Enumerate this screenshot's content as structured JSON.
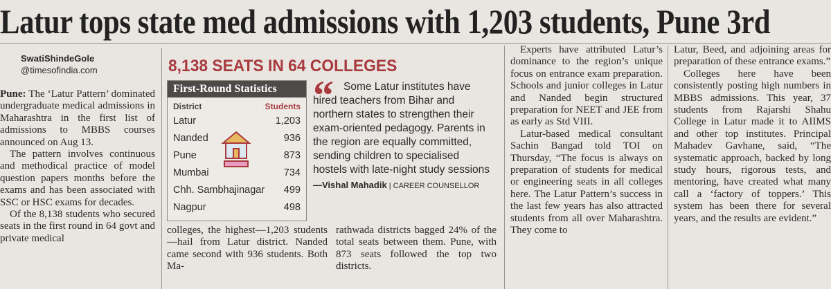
{
  "headline": "Latur tops state med admissions with 1,203 students, Pune 3rd",
  "byline": {
    "author": "SwatiShindeGole",
    "handle": "@timesofindia.com"
  },
  "infobox": {
    "banner": "8,138 SEATS IN 64 COLLEGES",
    "table": {
      "title": "First-Round Statistics",
      "headers": [
        "District",
        "Students"
      ],
      "rows": [
        [
          "Latur",
          "1,203"
        ],
        [
          "Nanded",
          "936"
        ],
        [
          "Pune",
          "873"
        ],
        [
          "Mumbai",
          "734"
        ],
        [
          "Chh. Sambhajinagar",
          "499"
        ],
        [
          "Nagpur",
          "498"
        ]
      ]
    },
    "quote": {
      "text": "Some Latur institutes have hired teachers from Bihar and northern states to strengthen their exam-oriented pedagogy. Parents in the region are equally committed, sending children to specialised hostels with late-night study sessions",
      "speaker": "—Vishal Mahadik",
      "role": "CAREER COUNSELLOR"
    }
  },
  "columns": [
    {
      "dateline": "Pune:",
      "paragraphs": [
        "The ‘Latur Pattern’ dominated undergraduate medical admissions in Maharashtra in the first list of admissions to MBBS courses announced on Aug 13.",
        "The pattern involves continuous and methodical practice of model question papers months before the exams and has been associated with SSC or HSC exams for decades.",
        "Of the 8,138 students who secured seats in the first round in 64 govt and private medical"
      ]
    },
    {
      "paragraphs": [
        "colleges, the highest—1,203 students—hail from Latur district. Nanded came second with 936 students. Both Ma-"
      ]
    },
    {
      "paragraphs": [
        "rathwada districts bagged 24% of the total seats between them. Pune, with 873 seats followed the top two districts."
      ]
    },
    {
      "paragraphs": [
        "Experts have attributed Latur’s dominance to the region’s unique focus on entrance exam preparation. Schools and junior colleges in Latur and Nanded begin structured preparation for NEET and JEE from as early as Std VIII.",
        "Latur-based medical consultant Sachin Bangad told TOI on Thursday, “The focus is always on preparation of students for medical or engineering seats in all colleges here. The Latur Pattern’s success in the last few years has also attracted students from all over Maharashtra. They come to"
      ]
    },
    {
      "paragraphs": [
        "Latur, Beed, and adjoining areas for preparation of these entrance exams.”",
        "Colleges here have been consistently posting high numbers in MBBS admissions. This year, 37 students from Rajarshi Shahu College in Latur made it to AIIMS and other top institutes. Principal Mahadev Gavhane, said, “The systematic approach, backed by long study hours, rigorous tests, and mentoring, have created what many call a ‘factory of toppers.’ This system has been there for several years, and the results are evident.”"
      ]
    }
  ]
}
